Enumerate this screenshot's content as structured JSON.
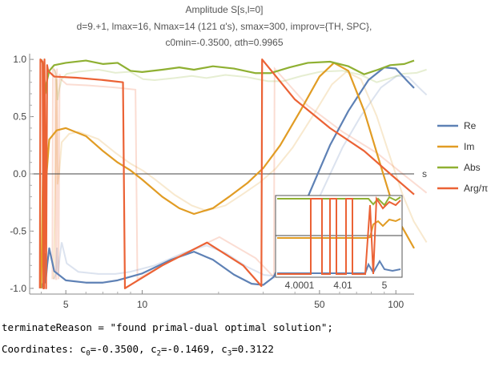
{
  "chart_data": {
    "type": "line",
    "title": "Amplitude S[s,l=0]",
    "subtitle_lines": [
      "d=9.+1, lmax=16, Nmax=14 (121 α's), smax=300, improv={TH, SPC},",
      "c0min=-0.3500, αth=0.9965"
    ],
    "xlabel": "s",
    "xscale": "log",
    "xlim": [
      3.6,
      118
    ],
    "ylim": [
      -1.05,
      1.05
    ],
    "xticks": [
      5,
      10,
      50,
      100
    ],
    "yticks": [
      1.0,
      0.5,
      0.0,
      -0.5,
      -1.0
    ],
    "ytick_labels": [
      "1.0",
      "0.5",
      "0.0",
      "-0.5",
      "-1.0"
    ],
    "xtick_labels": [
      "5",
      "10",
      "50",
      "100"
    ],
    "series": [
      {
        "name": "Re",
        "color": "#5E81B5",
        "points": [
          [
            4.0,
            -1.0
          ],
          [
            4.08,
            -0.95
          ],
          [
            4.12,
            -0.7
          ],
          [
            4.16,
            -0.95
          ],
          [
            4.22,
            -0.8
          ],
          [
            4.3,
            -0.65
          ],
          [
            4.5,
            -0.85
          ],
          [
            5,
            -0.93
          ],
          [
            6,
            -0.95
          ],
          [
            7,
            -0.95
          ],
          [
            8,
            -0.93
          ],
          [
            10,
            -0.87
          ],
          [
            13,
            -0.75
          ],
          [
            16,
            -0.68
          ],
          [
            19,
            -0.75
          ],
          [
            23,
            -0.88
          ],
          [
            27,
            -0.96
          ],
          [
            30,
            -0.97
          ],
          [
            33,
            -0.9
          ],
          [
            38,
            -0.6
          ],
          [
            45,
            -0.2
          ],
          [
            55,
            0.25
          ],
          [
            65,
            0.55
          ],
          [
            78,
            0.82
          ],
          [
            90,
            0.93
          ],
          [
            100,
            0.92
          ],
          [
            110,
            0.82
          ],
          [
            118,
            0.75
          ]
        ]
      },
      {
        "name": "Im",
        "color": "#E19C24",
        "points": [
          [
            4.0,
            -1.0
          ],
          [
            4.06,
            0.0
          ],
          [
            4.1,
            0.9
          ],
          [
            4.14,
            -0.1
          ],
          [
            4.2,
            0.0
          ],
          [
            4.3,
            0.3
          ],
          [
            4.6,
            0.38
          ],
          [
            5,
            0.4
          ],
          [
            6,
            0.33
          ],
          [
            7,
            0.2
          ],
          [
            8,
            0.1
          ],
          [
            9,
            0.03
          ],
          [
            10,
            -0.05
          ],
          [
            12,
            -0.2
          ],
          [
            14,
            -0.3
          ],
          [
            16,
            -0.35
          ],
          [
            19,
            -0.3
          ],
          [
            22,
            -0.2
          ],
          [
            26,
            -0.08
          ],
          [
            30,
            0.05
          ],
          [
            35,
            0.25
          ],
          [
            42,
            0.55
          ],
          [
            50,
            0.85
          ],
          [
            57,
            0.97
          ],
          [
            65,
            0.9
          ],
          [
            75,
            0.55
          ],
          [
            85,
            0.15
          ],
          [
            95,
            -0.2
          ],
          [
            105,
            -0.45
          ],
          [
            118,
            -0.65
          ]
        ]
      },
      {
        "name": "Abs",
        "color": "#8FB032",
        "points": [
          [
            4.0,
            1.0
          ],
          [
            4.08,
            0.95
          ],
          [
            4.14,
            0.7
          ],
          [
            4.2,
            0.8
          ],
          [
            4.3,
            0.9
          ],
          [
            4.5,
            0.95
          ],
          [
            5,
            0.97
          ],
          [
            6,
            0.99
          ],
          [
            7,
            0.96
          ],
          [
            8,
            0.97
          ],
          [
            9,
            0.9
          ],
          [
            10,
            0.89
          ],
          [
            12,
            0.91
          ],
          [
            14,
            0.93
          ],
          [
            16,
            0.91
          ],
          [
            19,
            0.94
          ],
          [
            23,
            0.92
          ],
          [
            28,
            0.88
          ],
          [
            32,
            0.88
          ],
          [
            38,
            0.93
          ],
          [
            45,
            0.97
          ],
          [
            55,
            0.98
          ],
          [
            65,
            0.94
          ],
          [
            75,
            0.87
          ],
          [
            85,
            0.91
          ],
          [
            95,
            0.95
          ],
          [
            108,
            0.96
          ],
          [
            118,
            0.99
          ]
        ]
      },
      {
        "name": "Arg/π",
        "color": "#EB6235",
        "points": [
          [
            3.95,
            -1.0
          ],
          [
            3.97,
            1.0
          ],
          [
            4.05,
            0.98
          ],
          [
            4.08,
            -1.0
          ],
          [
            4.1,
            -1.0
          ],
          [
            4.12,
            1.0
          ],
          [
            4.15,
            0.2
          ],
          [
            4.18,
            -1.0
          ],
          [
            4.22,
            0.95
          ],
          [
            4.26,
            0.9
          ],
          [
            4.5,
            0.85
          ],
          [
            5.5,
            0.84
          ],
          [
            7,
            0.82
          ],
          [
            8.4,
            0.8
          ],
          [
            8.55,
            -1.0
          ],
          [
            12,
            -0.8
          ],
          [
            18,
            -0.6
          ],
          [
            25,
            -0.8
          ],
          [
            29.5,
            -0.98
          ],
          [
            29.7,
            1.0
          ],
          [
            40,
            0.65
          ],
          [
            55,
            0.4
          ],
          [
            75,
            0.2
          ],
          [
            95,
            0.0
          ],
          [
            118,
            -0.18
          ]
        ]
      }
    ],
    "legend": {
      "placement": "right",
      "entries": [
        "Re",
        "Im",
        "Abs",
        "Arg/π"
      ]
    },
    "inset": {
      "xtick_labels": [
        "4.0001",
        "4.01",
        "5"
      ],
      "description": "zoomed view near threshold"
    },
    "background_curves_note": "faded reference curves"
  },
  "console": {
    "line1": "terminateReason = \"found primal-dual optimal solution\";",
    "line2_prefix": "Coordinates: ",
    "coords": [
      {
        "label": "c",
        "sub": "0",
        "value": "=-0.3500, "
      },
      {
        "label": "c",
        "sub": "2",
        "value": "=-0.1469, "
      },
      {
        "label": "c",
        "sub": "3",
        "value": "=0.3122"
      }
    ]
  }
}
